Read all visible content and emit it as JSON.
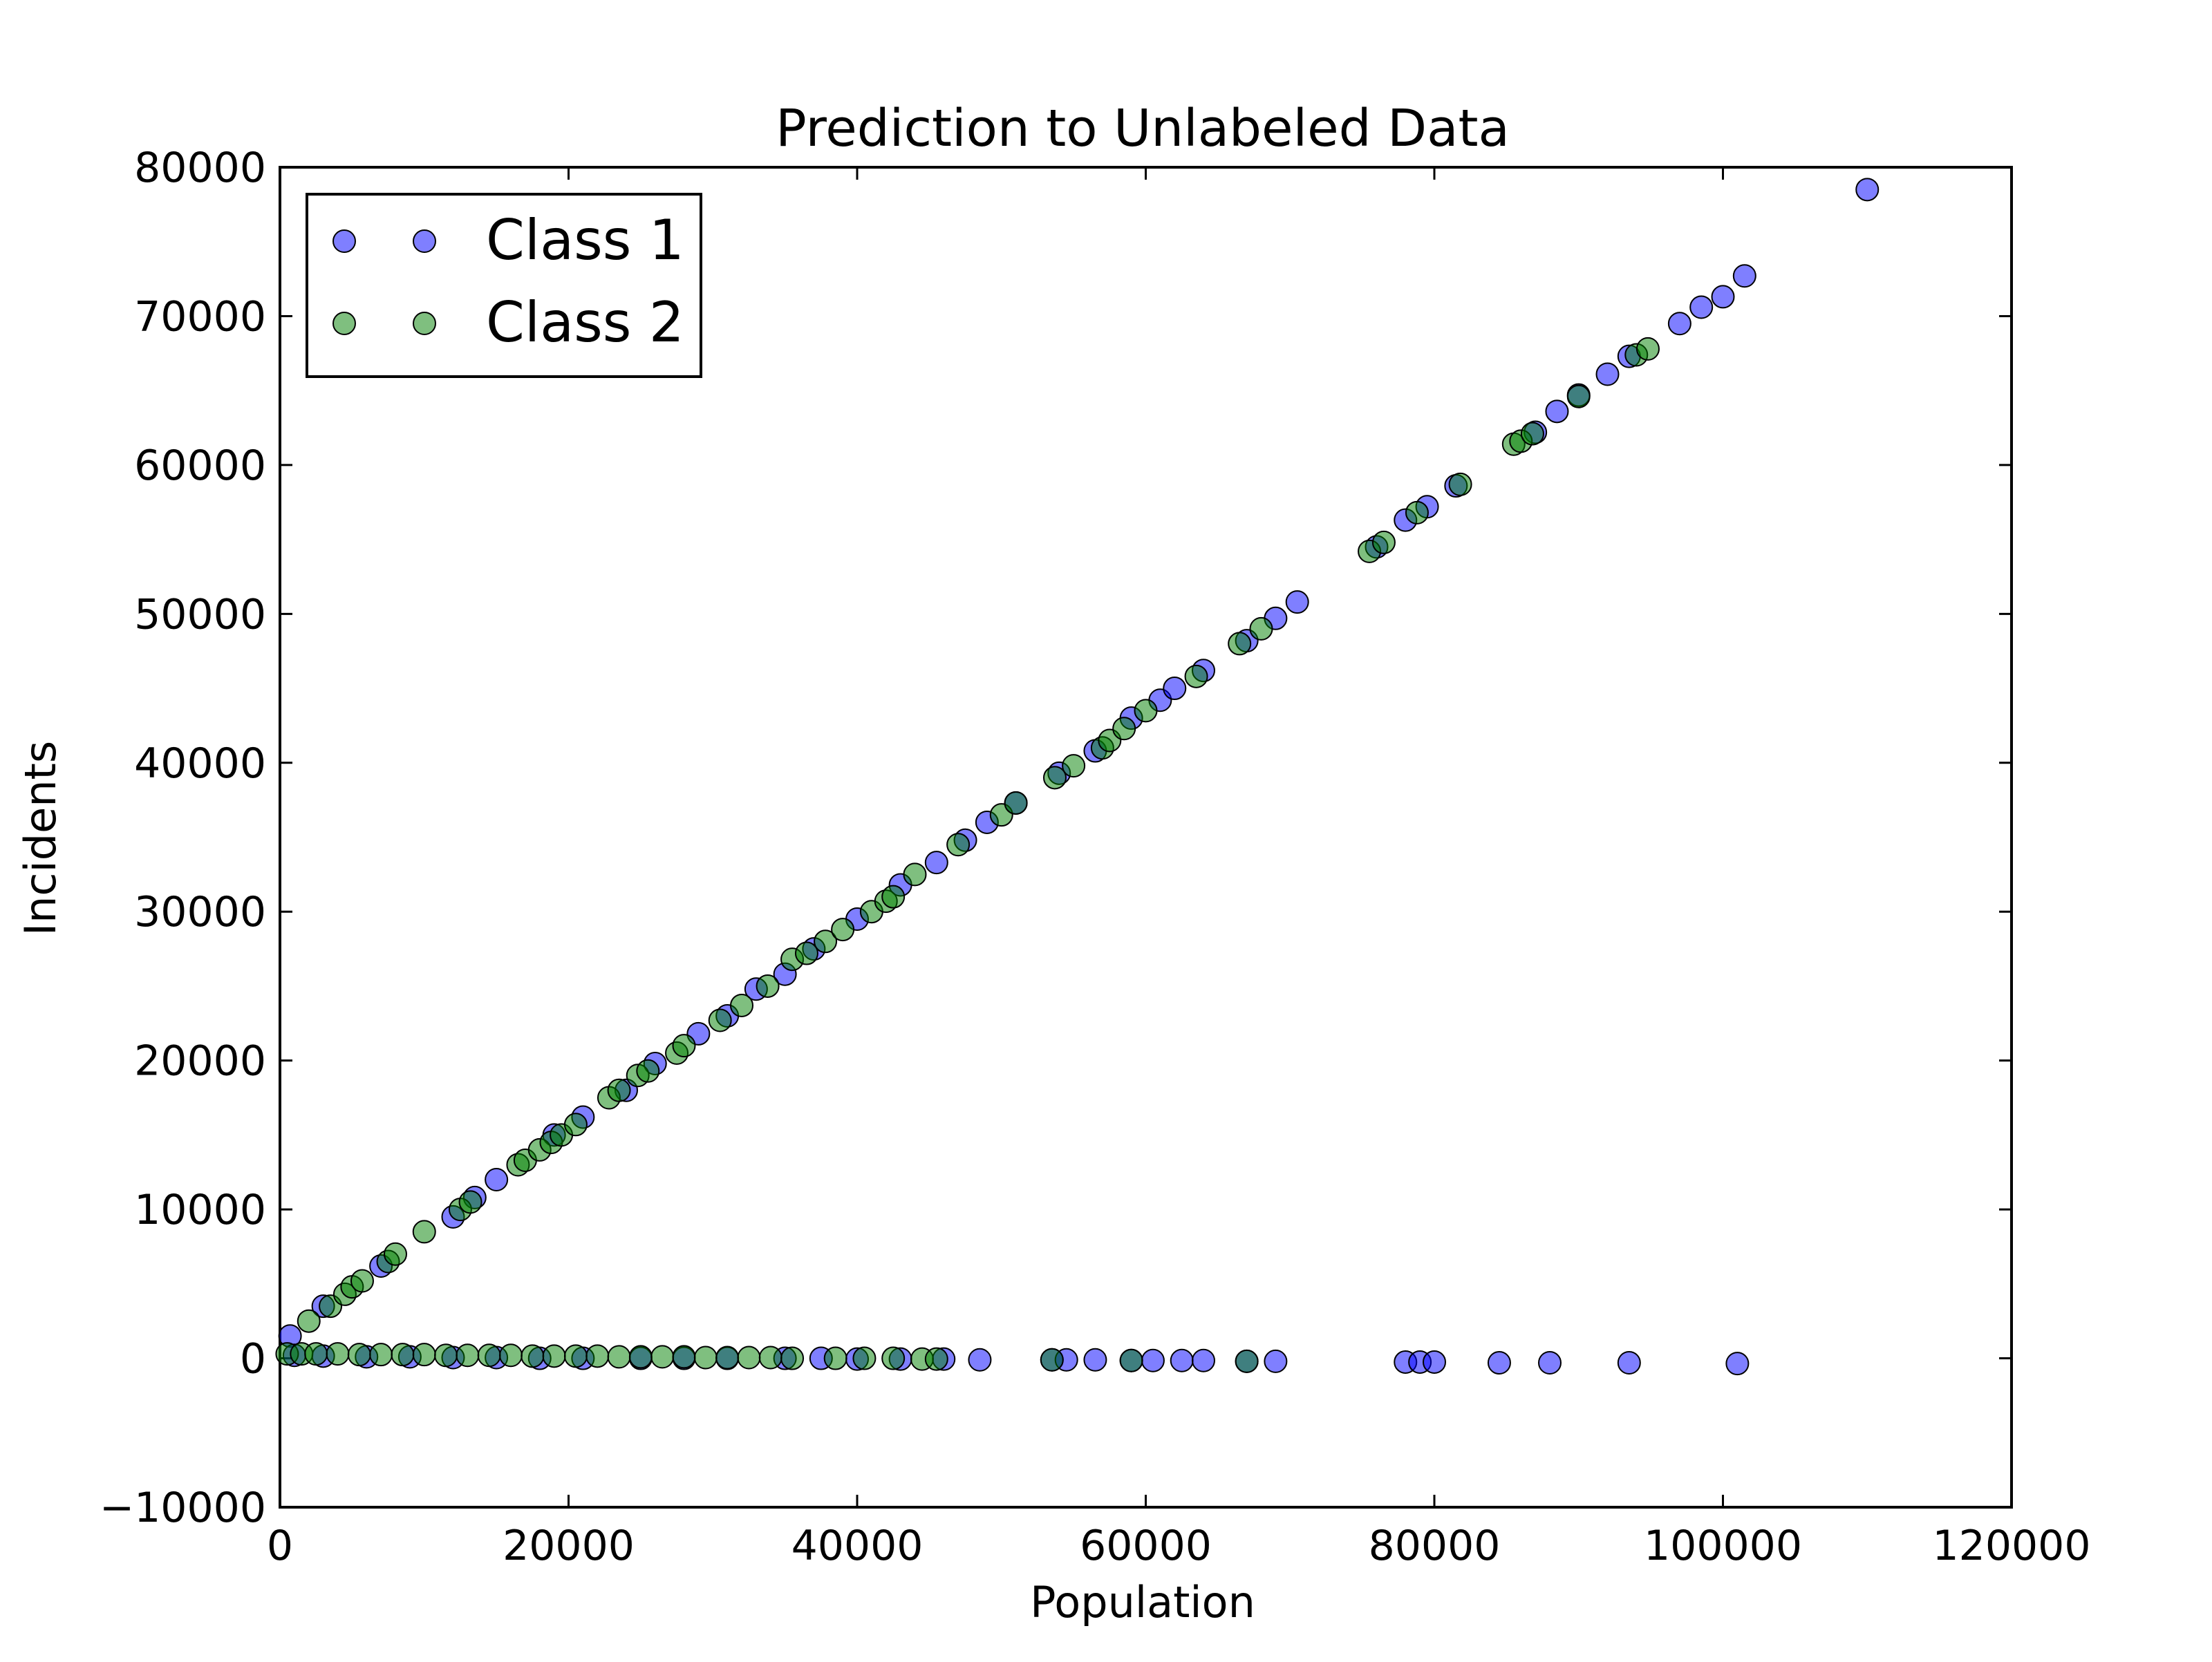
{
  "chart_data": {
    "type": "scatter",
    "title": "Prediction to Unlabeled Data",
    "xlabel": "Population",
    "ylabel": "Incidents",
    "xlim": [
      0,
      120000
    ],
    "ylim": [
      -10000,
      80000
    ],
    "xticks": [
      0,
      20000,
      40000,
      60000,
      80000,
      100000,
      120000
    ],
    "xtick_labels": [
      "0",
      "20000",
      "40000",
      "60000",
      "80000",
      "100000",
      "120000"
    ],
    "yticks": [
      -10000,
      0,
      10000,
      20000,
      30000,
      40000,
      50000,
      60000,
      70000,
      80000
    ],
    "ytick_labels": [
      "−10000",
      "0",
      "10000",
      "20000",
      "30000",
      "40000",
      "50000",
      "60000",
      "70000",
      "80000"
    ],
    "grid": false,
    "legend_position": "top-left",
    "series": [
      {
        "name": "Class 1",
        "color": "#0000ff",
        "points": [
          [
            700,
            1500
          ],
          [
            3000,
            3500
          ],
          [
            7000,
            6200
          ],
          [
            12000,
            9500
          ],
          [
            13500,
            10800
          ],
          [
            15000,
            12000
          ],
          [
            19000,
            15000
          ],
          [
            21000,
            16200
          ],
          [
            24000,
            18000
          ],
          [
            26000,
            19800
          ],
          [
            29000,
            21800
          ],
          [
            31000,
            23000
          ],
          [
            33000,
            24800
          ],
          [
            35000,
            25800
          ],
          [
            37000,
            27500
          ],
          [
            40000,
            29500
          ],
          [
            43000,
            31800
          ],
          [
            45500,
            33300
          ],
          [
            47500,
            34800
          ],
          [
            49000,
            36000
          ],
          [
            51000,
            37300
          ],
          [
            54000,
            39300
          ],
          [
            56500,
            40800
          ],
          [
            59000,
            43000
          ],
          [
            61000,
            44200
          ],
          [
            62000,
            45000
          ],
          [
            64000,
            46200
          ],
          [
            67000,
            48200
          ],
          [
            69000,
            49700
          ],
          [
            70500,
            50800
          ],
          [
            76000,
            54500
          ],
          [
            78000,
            56300
          ],
          [
            79500,
            57200
          ],
          [
            81500,
            58600
          ],
          [
            87000,
            62200
          ],
          [
            88500,
            63600
          ],
          [
            90000,
            64700
          ],
          [
            92000,
            66100
          ],
          [
            93500,
            67300
          ],
          [
            97000,
            69500
          ],
          [
            98500,
            70600
          ],
          [
            100000,
            71300
          ],
          [
            101500,
            72700
          ],
          [
            110000,
            78500
          ],
          [
            1000,
            200
          ],
          [
            3000,
            150
          ],
          [
            6000,
            100
          ],
          [
            9000,
            100
          ],
          [
            12000,
            50
          ],
          [
            15000,
            50
          ],
          [
            18000,
            0
          ],
          [
            21000,
            0
          ],
          [
            25000,
            0
          ],
          [
            28000,
            0
          ],
          [
            31000,
            0
          ],
          [
            35000,
            0
          ],
          [
            37500,
            0
          ],
          [
            40000,
            -50
          ],
          [
            43000,
            -50
          ],
          [
            46000,
            -50
          ],
          [
            48500,
            -100
          ],
          [
            53500,
            -100
          ],
          [
            54500,
            -100
          ],
          [
            56500,
            -100
          ],
          [
            59000,
            -150
          ],
          [
            60500,
            -150
          ],
          [
            62500,
            -150
          ],
          [
            64000,
            -150
          ],
          [
            67000,
            -200
          ],
          [
            69000,
            -200
          ],
          [
            78000,
            -250
          ],
          [
            79000,
            -250
          ],
          [
            80000,
            -250
          ],
          [
            84500,
            -300
          ],
          [
            88000,
            -300
          ],
          [
            93500,
            -300
          ],
          [
            101000,
            -350
          ]
        ]
      },
      {
        "name": "Class 2",
        "color": "#008000",
        "points": [
          [
            2000,
            2500
          ],
          [
            3500,
            3500
          ],
          [
            4500,
            4300
          ],
          [
            5000,
            4800
          ],
          [
            5700,
            5200
          ],
          [
            7500,
            6500
          ],
          [
            8000,
            7000
          ],
          [
            10000,
            8500
          ],
          [
            12500,
            10000
          ],
          [
            13200,
            10500
          ],
          [
            16500,
            13000
          ],
          [
            17000,
            13300
          ],
          [
            18000,
            14000
          ],
          [
            18800,
            14500
          ],
          [
            19500,
            15000
          ],
          [
            20500,
            15700
          ],
          [
            22800,
            17500
          ],
          [
            23500,
            18000
          ],
          [
            24800,
            19000
          ],
          [
            25500,
            19300
          ],
          [
            27500,
            20500
          ],
          [
            28000,
            21000
          ],
          [
            30500,
            22700
          ],
          [
            32000,
            23700
          ],
          [
            33800,
            25000
          ],
          [
            35500,
            26800
          ],
          [
            36500,
            27200
          ],
          [
            37800,
            28000
          ],
          [
            39000,
            28800
          ],
          [
            41000,
            30000
          ],
          [
            42000,
            30700
          ],
          [
            42500,
            31000
          ],
          [
            44000,
            32500
          ],
          [
            47000,
            34500
          ],
          [
            50000,
            36500
          ],
          [
            51000,
            37300
          ],
          [
            53700,
            39000
          ],
          [
            55000,
            39800
          ],
          [
            57000,
            41000
          ],
          [
            57500,
            41500
          ],
          [
            58500,
            42300
          ],
          [
            60000,
            43500
          ],
          [
            63500,
            45800
          ],
          [
            66500,
            48000
          ],
          [
            68000,
            49000
          ],
          [
            75500,
            54200
          ],
          [
            76500,
            54800
          ],
          [
            78800,
            56800
          ],
          [
            81800,
            58700
          ],
          [
            85500,
            61400
          ],
          [
            86000,
            61600
          ],
          [
            86800,
            62100
          ],
          [
            90000,
            64600
          ],
          [
            94000,
            67400
          ],
          [
            94800,
            67800
          ],
          [
            500,
            300
          ],
          [
            1500,
            300
          ],
          [
            2500,
            300
          ],
          [
            4000,
            300
          ],
          [
            5500,
            250
          ],
          [
            7000,
            250
          ],
          [
            8500,
            250
          ],
          [
            10000,
            250
          ],
          [
            11500,
            200
          ],
          [
            13000,
            200
          ],
          [
            14500,
            200
          ],
          [
            16000,
            200
          ],
          [
            17500,
            150
          ],
          [
            19000,
            150
          ],
          [
            20500,
            150
          ],
          [
            22000,
            150
          ],
          [
            23500,
            100
          ],
          [
            25000,
            100
          ],
          [
            26500,
            100
          ],
          [
            28000,
            100
          ],
          [
            29500,
            50
          ],
          [
            31000,
            50
          ],
          [
            32500,
            50
          ],
          [
            34000,
            50
          ],
          [
            35500,
            0
          ],
          [
            38500,
            0
          ],
          [
            40500,
            0
          ],
          [
            42500,
            0
          ],
          [
            44500,
            -50
          ],
          [
            45500,
            -50
          ],
          [
            53500,
            -100
          ],
          [
            59000,
            -150
          ],
          [
            67000,
            -200
          ]
        ]
      }
    ]
  }
}
